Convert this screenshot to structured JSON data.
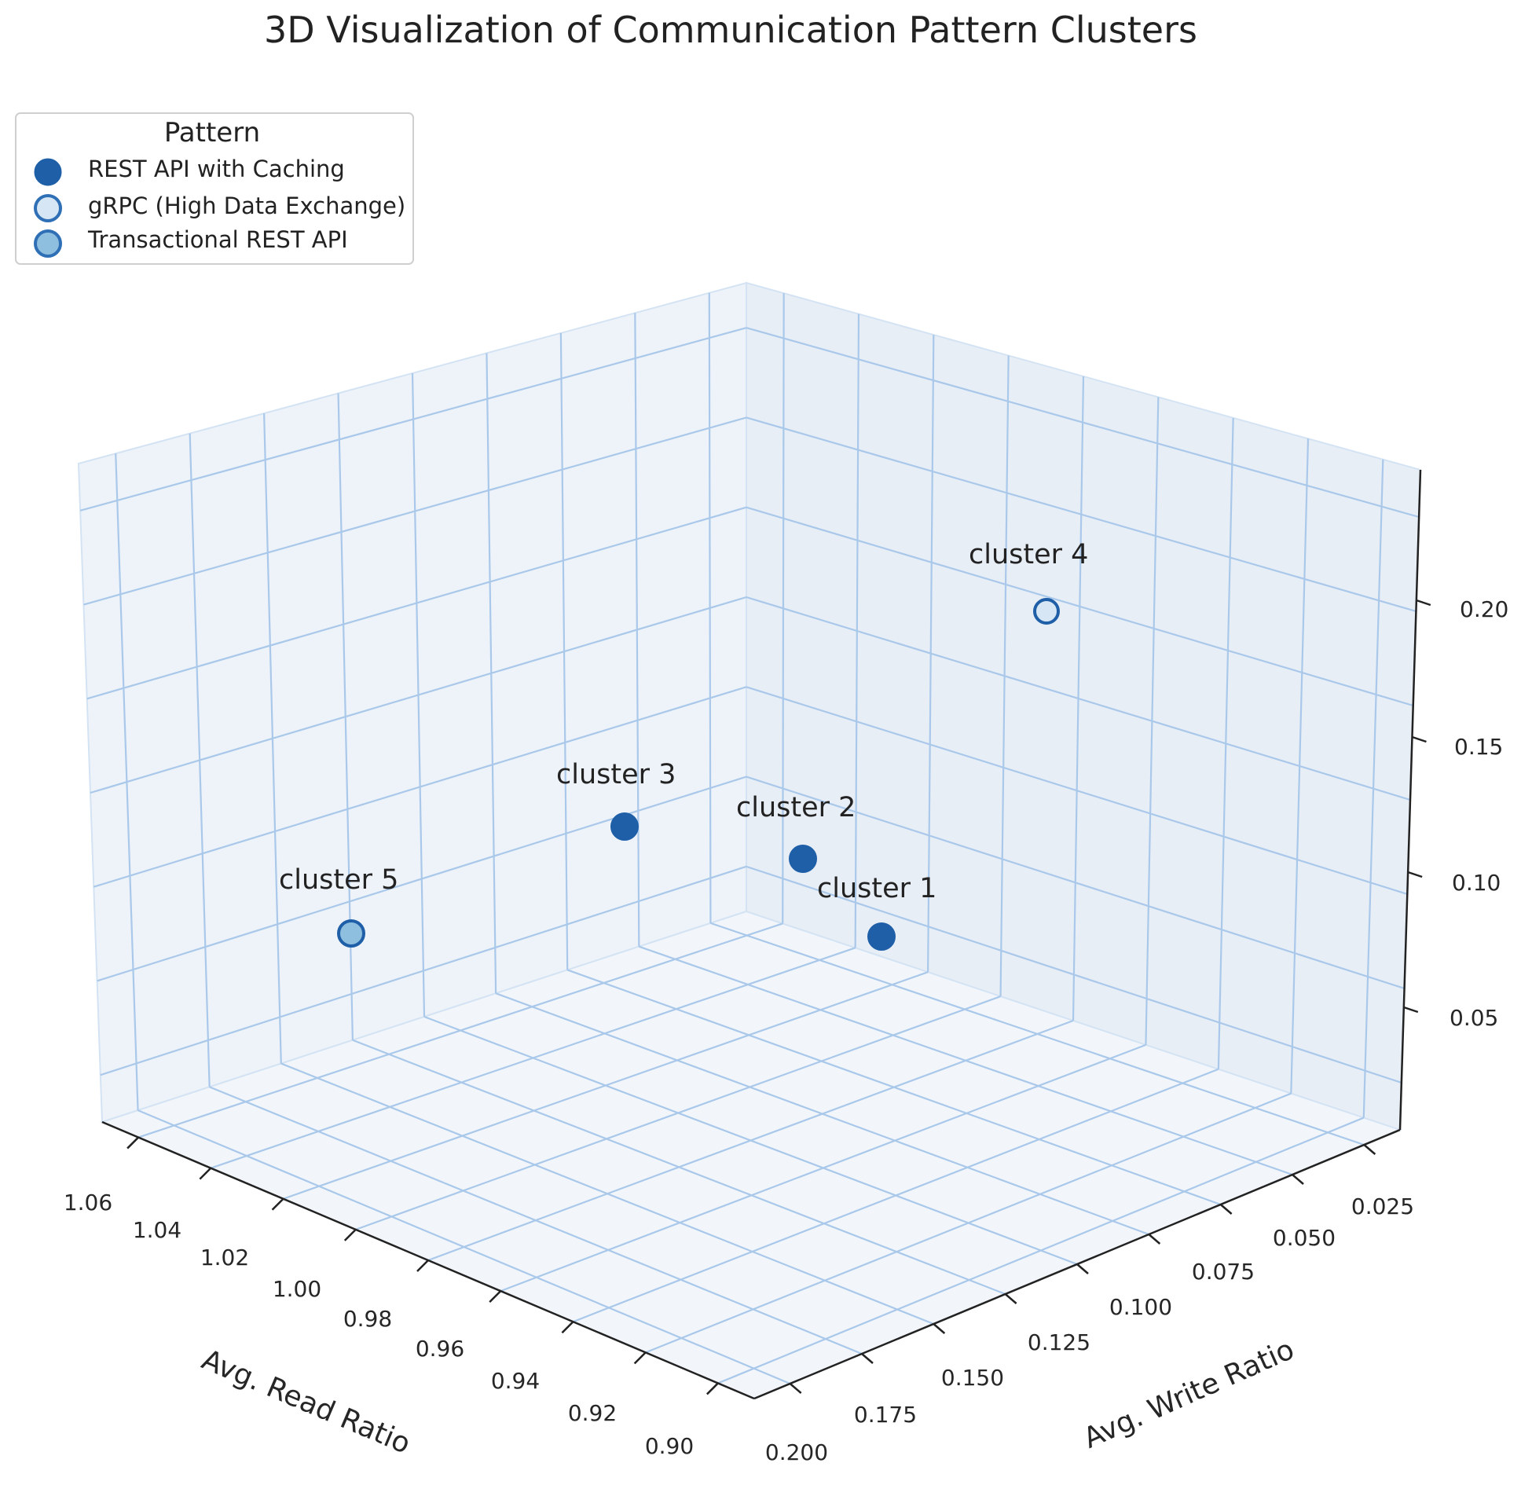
{
  "chart_data": {
    "type": "scatter",
    "title": "3D Visualization of Communication Pattern Clusters",
    "xlabel": "Avg. Read Ratio",
    "ylabel": "Avg. Write Ratio",
    "zlabel": "",
    "x_ticks": [
      "0.90",
      "0.92",
      "0.94",
      "0.96",
      "0.98",
      "1.00",
      "1.02",
      "1.04",
      "1.06"
    ],
    "y_ticks": [
      "0.025",
      "0.050",
      "0.075",
      "0.100",
      "0.125",
      "0.150",
      "0.175",
      "0.200"
    ],
    "z_ticks": [
      "0.05",
      "0.10",
      "0.15",
      "0.20"
    ],
    "legend": {
      "title": "Pattern",
      "placement": "top-left",
      "entries": [
        {
          "label": "REST API with Caching",
          "fill": "#1f5fa8",
          "stroke": "#1f5fa8"
        },
        {
          "label": "gRPC (High Data Exchange)",
          "fill": "#d6e6f4",
          "stroke": "#2e6fb5"
        },
        {
          "label": "Transactional REST API",
          "fill": "#8fbfdf",
          "stroke": "#2e6fb5"
        }
      ]
    },
    "points": [
      {
        "label": "cluster 1",
        "pattern": "REST API with Caching",
        "read_ratio": 0.945,
        "write_ratio": 0.06,
        "value": 0.09
      },
      {
        "label": "cluster 2",
        "pattern": "REST API with Caching",
        "read_ratio": 0.975,
        "write_ratio": 0.045,
        "value": 0.12
      },
      {
        "label": "cluster 3",
        "pattern": "REST API with Caching",
        "read_ratio": 1.0,
        "write_ratio": 0.05,
        "value": 0.14
      },
      {
        "label": "cluster 4",
        "pattern": "gRPC (High Data Exchange)",
        "read_ratio": 0.96,
        "write_ratio": 0.015,
        "value": 0.24
      },
      {
        "label": "cluster 5",
        "pattern": "Transactional REST API",
        "read_ratio": 1.04,
        "write_ratio": 0.07,
        "value": 0.09
      }
    ],
    "grid": true
  }
}
